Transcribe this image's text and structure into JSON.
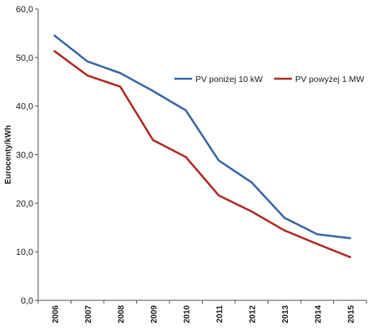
{
  "chart_data": {
    "type": "line",
    "ylabel": "Eurocenty/kWh",
    "xlabel": "",
    "ylim": [
      0,
      60
    ],
    "yticks": [
      "0,0",
      "10,0",
      "20,0",
      "30,0",
      "40,0",
      "50,0",
      "60,0"
    ],
    "categories": [
      "2006",
      "2007",
      "2008",
      "2009",
      "2010",
      "2011",
      "2012",
      "2013",
      "2014",
      "2015"
    ],
    "grid": false,
    "legend_position": "top-right",
    "series": [
      {
        "name": "PV poniżej 10 kW",
        "color": "#3d6aa8",
        "values": [
          54.5,
          49.2,
          46.8,
          43.1,
          39.1,
          28.8,
          24.3,
          17.0,
          13.6,
          12.8
        ]
      },
      {
        "name": "PV powyżej 1 MW",
        "color": "#b0302b",
        "values": [
          51.3,
          46.3,
          44.0,
          33.0,
          29.5,
          21.6,
          18.3,
          14.4,
          11.6,
          8.9
        ]
      }
    ]
  }
}
